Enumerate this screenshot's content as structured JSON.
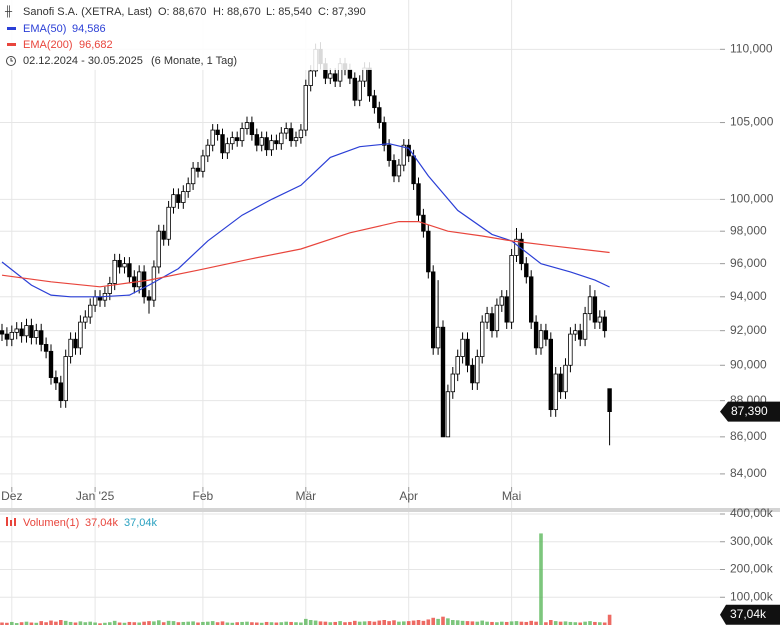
{
  "header": {
    "title": "Sanofi S.A. (XETRA, Last)",
    "ohlc": [
      "O: 88,670",
      "H: 88,670",
      "L: 85,540",
      "C: 87,390"
    ],
    "range": "02.12.2024 - 30.05.2025",
    "period": "(6 Monate, 1 Tag)"
  },
  "chart_data": [
    {
      "type": "candlestick",
      "scale": "log",
      "grid": true,
      "ylim": [
        82200,
        113500
      ],
      "yticks": [
        {
          "value": 84000,
          "label": "84,000"
        },
        {
          "value": 86000,
          "label": "86,000"
        },
        {
          "value": 88000,
          "label": "88,000"
        },
        {
          "value": 90000,
          "label": "90,000"
        },
        {
          "value": 92000,
          "label": "92,000"
        },
        {
          "value": 94000,
          "label": "94,000"
        },
        {
          "value": 96000,
          "label": "96,000"
        },
        {
          "value": 98000,
          "label": "98,000"
        },
        {
          "value": 100000,
          "label": "100,000"
        },
        {
          "value": 105000,
          "label": "105,000"
        },
        {
          "value": 110000,
          "label": "110,000"
        }
      ],
      "xticks": [
        {
          "value": 2,
          "label": "Dez"
        },
        {
          "value": 19,
          "label": "Jan '25"
        },
        {
          "value": 41,
          "label": "Feb"
        },
        {
          "value": 62,
          "label": "Mär"
        },
        {
          "value": 83,
          "label": "Apr"
        },
        {
          "value": 104,
          "label": "Mai"
        }
      ],
      "up_fill": "#ffffff",
      "down_fill": "#000000",
      "open": [
        92000,
        91800,
        91500,
        91900,
        92100,
        91700,
        92300,
        91600,
        92000,
        91200,
        90800,
        89300,
        89000,
        88000,
        90500,
        91500,
        91000,
        92500,
        92800,
        93500,
        94000,
        93800,
        94200,
        94800,
        96200,
        95800,
        96000,
        95200,
        94600,
        95500,
        94000,
        93800,
        95800,
        98000,
        97500,
        99500,
        100300,
        99800,
        100500,
        101000,
        102000,
        101800,
        102800,
        103500,
        104500,
        104200,
        103000,
        103600,
        104000,
        103800,
        104600,
        105000,
        104200,
        103500,
        104000,
        103200,
        103800,
        103600,
        104300,
        104600,
        103800,
        104000,
        104500,
        107500,
        108500,
        110000,
        109000,
        108000,
        108300,
        107800,
        109000,
        108600,
        108000,
        106500,
        107800,
        108700,
        106800,
        106000,
        105000,
        103500,
        102500,
        101500,
        102200,
        103500,
        102800,
        101000,
        99000,
        98000,
        95500,
        91000,
        92200,
        86000,
        88500,
        89500,
        90500,
        91500,
        90000,
        89000,
        90500,
        92500,
        93000,
        92000,
        93500,
        94000,
        92500,
        96500,
        97500,
        96000,
        95200,
        92500,
        91000,
        92000,
        91500,
        87500,
        89500,
        88500,
        90000,
        91800,
        92000,
        91500,
        93000,
        94000,
        92500,
        92800,
        88670
      ],
      "high": [
        92400,
        92200,
        92300,
        92500,
        92500,
        92700,
        92700,
        92400,
        92400,
        91600,
        91200,
        89700,
        89400,
        90900,
        91900,
        91900,
        92900,
        93200,
        93900,
        94400,
        94400,
        94600,
        95200,
        96600,
        96600,
        96400,
        96400,
        95600,
        95900,
        95900,
        94400,
        96200,
        98400,
        98400,
        99900,
        100700,
        100700,
        100900,
        101400,
        102400,
        102400,
        103200,
        103900,
        104900,
        104900,
        104600,
        104000,
        104400,
        104400,
        105000,
        105400,
        105400,
        104600,
        104400,
        104400,
        104200,
        104200,
        104700,
        105000,
        105000,
        104400,
        104900,
        107900,
        108900,
        110400,
        110500,
        109400,
        108700,
        108700,
        109400,
        109400,
        109000,
        108400,
        108200,
        109100,
        109100,
        107200,
        106400,
        105400,
        103900,
        102900,
        102600,
        103900,
        103900,
        103200,
        101400,
        99400,
        98400,
        95900,
        95000,
        92600,
        88900,
        89900,
        90900,
        91900,
        91900,
        90400,
        90900,
        92900,
        93400,
        93400,
        93900,
        94400,
        94400,
        96900,
        98200,
        97900,
        96400,
        95600,
        92900,
        92400,
        92400,
        91900,
        89900,
        89900,
        90400,
        92200,
        92400,
        92400,
        93400,
        94700,
        94400,
        93200,
        93200,
        88670
      ],
      "low": [
        91400,
        91100,
        91100,
        91500,
        91300,
        91300,
        91200,
        91200,
        90800,
        90400,
        88900,
        88600,
        87600,
        87600,
        90100,
        90600,
        90600,
        92100,
        92400,
        93100,
        93400,
        93400,
        93800,
        94400,
        95400,
        95400,
        94800,
        94200,
        94200,
        93600,
        93000,
        93400,
        95400,
        97100,
        97100,
        99100,
        99400,
        99400,
        100100,
        100600,
        101400,
        101400,
        102400,
        103100,
        103800,
        102600,
        102600,
        103200,
        103400,
        103400,
        104200,
        103800,
        103100,
        103100,
        102800,
        102800,
        103200,
        103200,
        103900,
        103400,
        103400,
        103600,
        104100,
        107100,
        108100,
        108600,
        107600,
        107600,
        107400,
        107400,
        108200,
        107600,
        106100,
        106100,
        107400,
        106400,
        105600,
        104600,
        103100,
        102100,
        101100,
        101100,
        101800,
        102400,
        100600,
        98600,
        97600,
        95100,
        90600,
        90600,
        86000,
        86000,
        88100,
        89100,
        90100,
        89600,
        88600,
        88600,
        90100,
        92100,
        91600,
        91600,
        93100,
        92100,
        92100,
        96100,
        95600,
        94800,
        92100,
        90600,
        90600,
        91100,
        87100,
        87100,
        88100,
        88100,
        89600,
        91400,
        91100,
        91100,
        92600,
        92100,
        92100,
        91600,
        85540
      ],
      "close": [
        91800,
        91500,
        91900,
        92100,
        91700,
        92300,
        91600,
        92000,
        91200,
        90800,
        89300,
        89000,
        88000,
        90500,
        91500,
        91000,
        92500,
        92800,
        93500,
        94000,
        93800,
        94200,
        94800,
        96200,
        95800,
        96000,
        95200,
        94600,
        95500,
        94000,
        93800,
        95800,
        98000,
        97500,
        99500,
        100300,
        99800,
        100500,
        101000,
        102000,
        101800,
        102800,
        103500,
        104500,
        104200,
        103000,
        103600,
        104000,
        103800,
        104600,
        105000,
        104200,
        103500,
        104000,
        103200,
        103800,
        103600,
        104300,
        104600,
        103800,
        104000,
        104500,
        107500,
        108500,
        110000,
        109000,
        108000,
        108300,
        107800,
        109000,
        108600,
        108000,
        106500,
        107800,
        108700,
        106800,
        106000,
        105000,
        103500,
        102500,
        101500,
        102200,
        103500,
        102800,
        101000,
        99000,
        98000,
        95500,
        91000,
        92200,
        86000,
        88500,
        89500,
        90500,
        91500,
        90000,
        89000,
        90500,
        92500,
        93000,
        92000,
        93500,
        94000,
        92500,
        96500,
        97500,
        96000,
        95200,
        92500,
        91000,
        92000,
        91500,
        87500,
        89500,
        88500,
        90000,
        91800,
        92000,
        91500,
        93000,
        94000,
        92500,
        92800,
        92000,
        87390
      ],
      "last_value_label": "87,390",
      "series": [
        {
          "name": "EMA(50)",
          "color": "#2b3fd6",
          "last_label": "94,586",
          "x": [
            0,
            6,
            10,
            14,
            20,
            26,
            30,
            36,
            42,
            49,
            55,
            61,
            67,
            73,
            79,
            83,
            87,
            93,
            100,
            104,
            110,
            116,
            121,
            124
          ],
          "values": [
            96100,
            94700,
            94100,
            94000,
            94000,
            94100,
            94700,
            95700,
            97400,
            99000,
            100000,
            100900,
            102700,
            103400,
            103600,
            103300,
            101500,
            99300,
            97800,
            97400,
            96000,
            95500,
            95000,
            94586
          ]
        },
        {
          "name": "EMA(200)",
          "color": "#e8453c",
          "last_label": "96,682",
          "x": [
            0,
            10,
            20,
            30,
            40,
            51,
            61,
            71,
            81,
            85,
            91,
            98,
            104,
            112,
            124
          ],
          "values": [
            95300,
            94900,
            94600,
            95000,
            95600,
            96300,
            96900,
            97900,
            98600,
            98600,
            98000,
            97700,
            97400,
            97100,
            96682
          ]
        }
      ]
    },
    {
      "type": "bar",
      "title": "Volumen(1)",
      "legend_labels": [
        "37,04k",
        "37,04k"
      ],
      "legend_colors": [
        "#e8453c",
        "#2aa1c0"
      ],
      "up_color": "#5cb85c",
      "down_color": "#e8453c",
      "ylim": [
        0,
        400000
      ],
      "grid": true,
      "yticks": [
        {
          "value": 100000,
          "label": "100,00k"
        },
        {
          "value": 200000,
          "label": "200,00k"
        },
        {
          "value": 300000,
          "label": "300,00k"
        },
        {
          "value": 400000,
          "label": "400,00k"
        }
      ],
      "last_value_label": "37,04k",
      "values": [
        9000,
        8000,
        11000,
        7000,
        10000,
        12000,
        9000,
        8000,
        14000,
        10000,
        16000,
        12000,
        18000,
        15000,
        11000,
        9000,
        13000,
        10000,
        12000,
        9000,
        6000,
        8000,
        10000,
        15000,
        9000,
        8000,
        11000,
        10000,
        9000,
        12000,
        14000,
        13000,
        17000,
        10000,
        15000,
        14000,
        10000,
        11000,
        12000,
        13000,
        9000,
        11000,
        12000,
        14000,
        10000,
        13000,
        9000,
        8000,
        10000,
        11000,
        12000,
        10000,
        9000,
        8000,
        11000,
        10000,
        9000,
        10000,
        12000,
        11000,
        10000,
        9000,
        22000,
        18000,
        16000,
        13000,
        12000,
        10000,
        11000,
        14000,
        10000,
        11000,
        15000,
        12000,
        13000,
        14000,
        12000,
        16000,
        18000,
        14000,
        17000,
        12000,
        13000,
        14000,
        16000,
        18000,
        15000,
        20000,
        26000,
        22000,
        30000,
        24000,
        18000,
        17000,
        15000,
        14000,
        13000,
        12000,
        16000,
        12000,
        11000,
        10000,
        12000,
        11000,
        13000,
        14000,
        12000,
        11000,
        15000,
        12000,
        330000,
        10000,
        18000,
        14000,
        12000,
        13000,
        11000,
        10000,
        9000,
        12000,
        14000,
        11000,
        10000,
        9000,
        37040
      ]
    }
  ]
}
